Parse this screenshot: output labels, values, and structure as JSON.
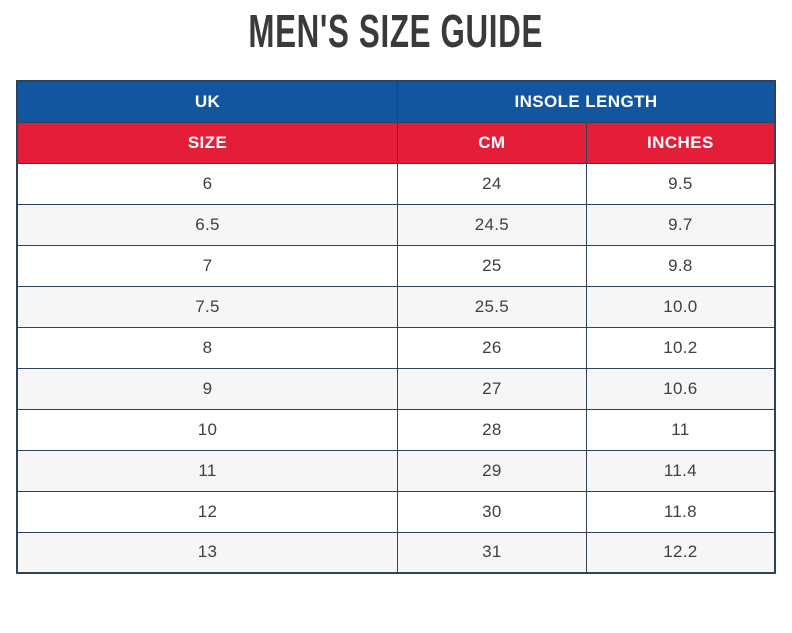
{
  "page": {
    "title": "MEN'S SIZE GUIDE"
  },
  "colors": {
    "header_blue": "#11569e",
    "header_red": "#e41e38",
    "border": "#2e4356",
    "row_stripe": "#f6f6f7",
    "title_text": "#3a3a3a",
    "cell_text": "#404040",
    "header_text": "#ffffff"
  },
  "table": {
    "group_headers": [
      {
        "label": "UK",
        "colspan": 1
      },
      {
        "label": "INSOLE LENGTH",
        "colspan": 2
      }
    ],
    "column_headers": [
      "SIZE",
      "CM",
      "INCHES"
    ],
    "rows": [
      [
        "6",
        "24",
        "9.5"
      ],
      [
        "6.5",
        "24.5",
        "9.7"
      ],
      [
        "7",
        "25",
        "9.8"
      ],
      [
        "7.5",
        "25.5",
        "10.0"
      ],
      [
        "8",
        "26",
        "10.2"
      ],
      [
        "9",
        "27",
        "10.6"
      ],
      [
        "10",
        "28",
        "11"
      ],
      [
        "11",
        "29",
        "11.4"
      ],
      [
        "12",
        "30",
        "11.8"
      ],
      [
        "13",
        "31",
        "12.2"
      ]
    ]
  },
  "chart_data": {
    "type": "table",
    "title": "MEN'S SIZE GUIDE",
    "column_groups": [
      {
        "label": "UK",
        "columns": [
          "SIZE"
        ]
      },
      {
        "label": "INSOLE LENGTH",
        "columns": [
          "CM",
          "INCHES"
        ]
      }
    ],
    "columns": [
      "SIZE",
      "CM",
      "INCHES"
    ],
    "rows": [
      [
        "6",
        "24",
        "9.5"
      ],
      [
        "6.5",
        "24.5",
        "9.7"
      ],
      [
        "7",
        "25",
        "9.8"
      ],
      [
        "7.5",
        "25.5",
        "10.0"
      ],
      [
        "8",
        "26",
        "10.2"
      ],
      [
        "9",
        "27",
        "10.6"
      ],
      [
        "10",
        "28",
        "11"
      ],
      [
        "11",
        "29",
        "11.4"
      ],
      [
        "12",
        "30",
        "11.8"
      ],
      [
        "13",
        "31",
        "12.2"
      ]
    ]
  }
}
